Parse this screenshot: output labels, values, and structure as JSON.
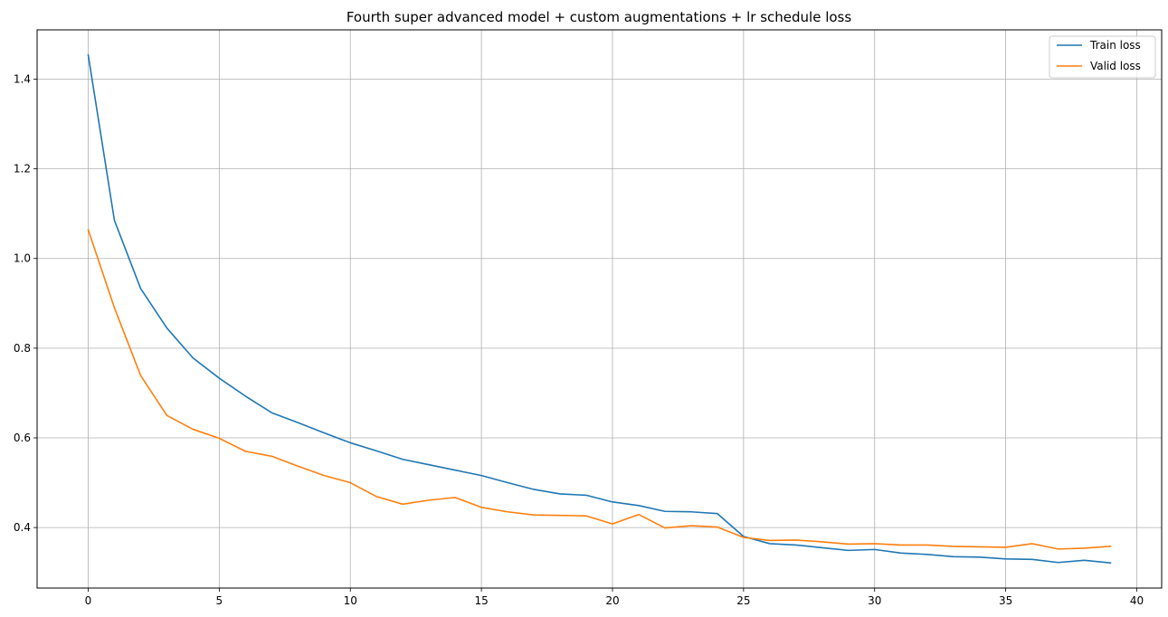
{
  "chart_data": {
    "type": "line",
    "title": "Fourth super advanced model + custom augmentations + lr schedule loss",
    "xlabel": "",
    "ylabel": "",
    "xlim": [
      -1.95,
      40.95
    ],
    "ylim": [
      0.265,
      1.51
    ],
    "xticks": [
      0,
      5,
      10,
      15,
      20,
      25,
      30,
      35,
      40
    ],
    "yticks": [
      0.4,
      0.6,
      0.8,
      1.0,
      1.2,
      1.4
    ],
    "ytick_labels": [
      "0.4",
      "0.6",
      "0.8",
      "1.0",
      "1.2",
      "1.4"
    ],
    "grid": true,
    "legend": "top-right",
    "x": [
      0,
      1,
      2,
      3,
      4,
      5,
      6,
      7,
      8,
      9,
      10,
      11,
      12,
      13,
      14,
      15,
      16,
      17,
      18,
      19,
      20,
      21,
      22,
      23,
      24,
      25,
      26,
      27,
      28,
      29,
      30,
      31,
      32,
      33,
      34,
      35,
      36,
      37,
      38,
      39
    ],
    "series": [
      {
        "name": "Train loss",
        "color": "#1f77b4",
        "values": [
          1.454,
          1.085,
          0.933,
          0.845,
          0.778,
          0.733,
          0.693,
          0.656,
          0.634,
          0.611,
          0.589,
          0.571,
          0.552,
          0.54,
          0.528,
          0.516,
          0.5,
          0.485,
          0.475,
          0.472,
          0.457,
          0.449,
          0.436,
          0.435,
          0.431,
          0.38,
          0.364,
          0.361,
          0.355,
          0.349,
          0.351,
          0.343,
          0.34,
          0.335,
          0.334,
          0.33,
          0.329,
          0.322,
          0.327,
          0.321
        ]
      },
      {
        "name": "Valid loss",
        "color": "#ff7f0e",
        "values": [
          1.064,
          0.89,
          0.739,
          0.65,
          0.619,
          0.599,
          0.57,
          0.559,
          0.537,
          0.516,
          0.5,
          0.469,
          0.452,
          0.461,
          0.467,
          0.445,
          0.435,
          0.428,
          0.427,
          0.426,
          0.408,
          0.429,
          0.399,
          0.404,
          0.401,
          0.378,
          0.371,
          0.372,
          0.368,
          0.363,
          0.364,
          0.361,
          0.361,
          0.358,
          0.357,
          0.356,
          0.364,
          0.352,
          0.354,
          0.358
        ]
      }
    ]
  }
}
